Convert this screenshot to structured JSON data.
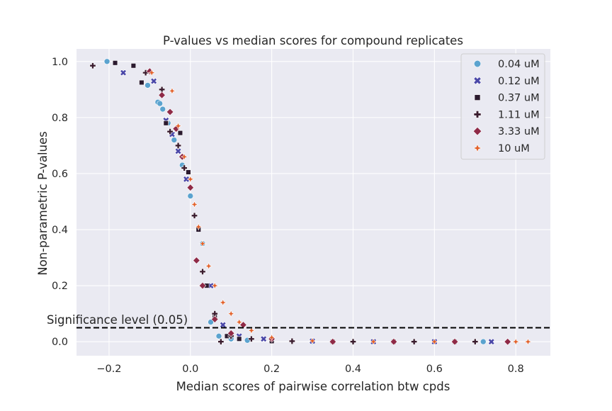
{
  "chart_data": {
    "type": "scatter",
    "title": "P-values vs median scores for compound replicates",
    "xlabel": "Median scores of pairwise correlation btw cpds",
    "ylabel": "Non-parametric P-values",
    "xlim": [
      -0.28,
      0.885
    ],
    "ylim": [
      -0.05,
      1.045
    ],
    "xticks": [
      -0.2,
      0.0,
      0.2,
      0.4,
      0.6,
      0.8
    ],
    "xtick_labels": [
      "−0.2",
      "0.0",
      "0.2",
      "0.4",
      "0.6",
      "0.8"
    ],
    "yticks": [
      0.0,
      0.2,
      0.4,
      0.6,
      0.8,
      1.0
    ],
    "ytick_labels": [
      "0.0",
      "0.2",
      "0.4",
      "0.6",
      "0.8",
      "1.0"
    ],
    "grid": true,
    "background": "#eaeaf2",
    "legend_position": "top-right",
    "significance_line": {
      "y": 0.05,
      "label": "Significance level (0.05)",
      "color": "#000000"
    },
    "series": [
      {
        "name": "0.04 uM",
        "marker": "circle",
        "color": "#5ba3cf",
        "x": [
          -0.205,
          -0.105,
          -0.08,
          -0.075,
          -0.068,
          -0.055,
          -0.04,
          -0.02,
          0.0,
          0.03,
          0.05,
          0.07,
          0.1,
          0.14,
          0.2,
          0.3,
          0.45,
          0.6,
          0.72
        ],
        "y": [
          1.0,
          0.915,
          0.855,
          0.85,
          0.83,
          0.78,
          0.72,
          0.63,
          0.52,
          0.35,
          0.07,
          0.02,
          0.01,
          0.005,
          0.002,
          0.0,
          0.0,
          0.0,
          0.0
        ]
      },
      {
        "name": "0.12 uM",
        "marker": "x",
        "color": "#4a47a8",
        "x": [
          -0.165,
          -0.09,
          -0.06,
          -0.045,
          -0.03,
          -0.01,
          0.02,
          0.05,
          0.08,
          0.12,
          0.18,
          0.3,
          0.45,
          0.6,
          0.74
        ],
        "y": [
          0.96,
          0.93,
          0.79,
          0.74,
          0.68,
          0.58,
          0.4,
          0.2,
          0.06,
          0.02,
          0.01,
          0.002,
          0.0,
          0.0,
          0.0
        ]
      },
      {
        "name": "0.37 uM",
        "marker": "square",
        "color": "#2b1a2e",
        "x": [
          -0.185,
          -0.14,
          -0.12,
          -0.06,
          -0.025,
          -0.005,
          0.02,
          0.04,
          0.06,
          0.09,
          0.12,
          0.2,
          0.35,
          0.5,
          0.65
        ],
        "y": [
          0.995,
          0.985,
          0.925,
          0.78,
          0.745,
          0.605,
          0.4,
          0.2,
          0.09,
          0.02,
          0.01,
          0.002,
          0.0,
          0.0,
          0.0
        ]
      },
      {
        "name": "1.11 uM",
        "marker": "plus",
        "color": "#3a1c2e",
        "x": [
          -0.24,
          -0.11,
          -0.07,
          -0.05,
          -0.03,
          -0.015,
          0.01,
          0.03,
          0.06,
          0.075,
          0.1,
          0.15,
          0.25,
          0.4,
          0.55,
          0.7
        ],
        "y": [
          0.985,
          0.96,
          0.9,
          0.75,
          0.7,
          0.62,
          0.45,
          0.25,
          0.1,
          0.0,
          0.02,
          0.01,
          0.002,
          0.0,
          0.0,
          0.0
        ]
      },
      {
        "name": "3.33 uM",
        "marker": "diamond",
        "color": "#8f2a47",
        "x": [
          -0.1,
          -0.07,
          -0.05,
          -0.035,
          -0.02,
          0.0,
          0.015,
          0.03,
          0.06,
          0.1,
          0.13,
          0.2,
          0.35,
          0.5,
          0.65,
          0.78
        ],
        "y": [
          0.965,
          0.88,
          0.82,
          0.76,
          0.66,
          0.55,
          0.29,
          0.2,
          0.08,
          0.03,
          0.06,
          0.01,
          0.0,
          0.0,
          0.0,
          0.0
        ]
      },
      {
        "name": "10 uM",
        "marker": "star",
        "color": "#e2612a",
        "x": [
          -0.095,
          -0.045,
          -0.03,
          -0.015,
          0.0,
          0.01,
          0.02,
          0.03,
          0.045,
          0.06,
          0.08,
          0.1,
          0.12,
          0.15,
          0.2,
          0.3,
          0.45,
          0.6,
          0.8,
          0.83
        ],
        "y": [
          0.96,
          0.895,
          0.77,
          0.66,
          0.58,
          0.49,
          0.41,
          0.35,
          0.27,
          0.2,
          0.14,
          0.1,
          0.07,
          0.04,
          0.015,
          0.003,
          0.0,
          0.0,
          0.0,
          0.0
        ]
      }
    ]
  }
}
